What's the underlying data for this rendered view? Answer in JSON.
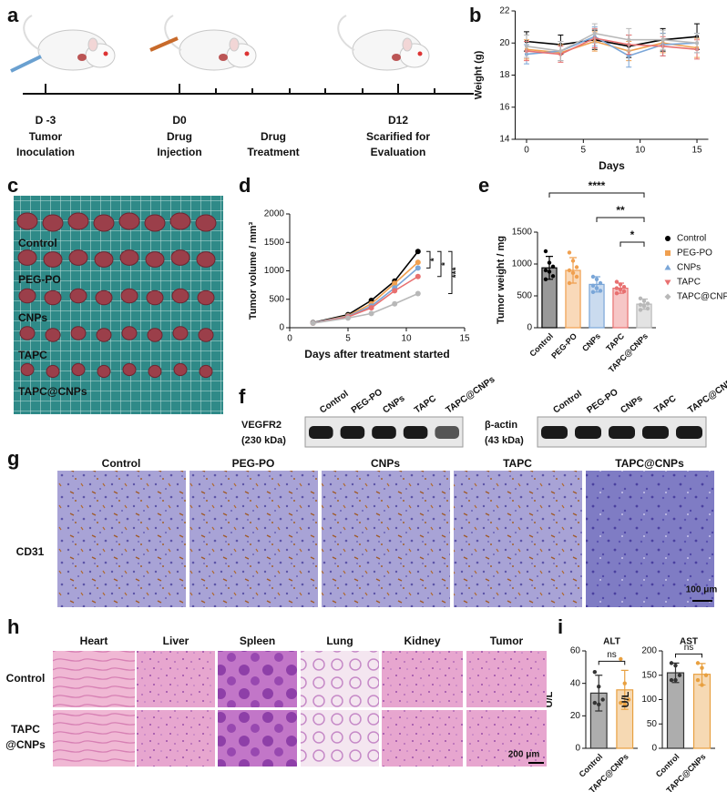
{
  "panel_labels": [
    "a",
    "b",
    "c",
    "d",
    "e",
    "f",
    "g",
    "h",
    "i"
  ],
  "timeline": {
    "days": [
      "D -3",
      "D0",
      "D12"
    ],
    "labels": [
      [
        "Tumor",
        "Inoculation"
      ],
      [
        "Drug",
        "Injection"
      ],
      [
        "Drug",
        "Treatment"
      ],
      [
        "Scarified for",
        "Evaluation"
      ]
    ]
  },
  "photo": {
    "rows": [
      "Control",
      "PEG-PO",
      "CNPs",
      "TAPC",
      "TAPC@CNPs"
    ]
  },
  "blot": {
    "lanes": [
      "Control",
      "PEG-PO",
      "CNPs",
      "TAPC",
      "TAPC@CNPs"
    ],
    "left": {
      "protein": "VEGFR2",
      "size": "(230 kDa)"
    },
    "right": {
      "protein": "β-actin",
      "size": "(43 kDa)"
    }
  },
  "cd31": {
    "columns": [
      "Control",
      "PEG-PO",
      "CNPs",
      "TAPC",
      "TAPC@CNPs"
    ],
    "row": "CD31",
    "scale": "100 μm"
  },
  "he": {
    "columns": [
      "Heart",
      "Liver",
      "Spleen",
      "Lung",
      "Kidney",
      "Tumor"
    ],
    "rows": [
      [
        "Control"
      ],
      [
        "TAPC",
        "@CNPs"
      ]
    ],
    "scale": "200 μm"
  },
  "chart_data": [
    {
      "type": "line",
      "x_label": "Days",
      "y_label": "Weight (g)",
      "x": [
        0,
        3,
        6,
        9,
        12,
        15
      ],
      "xlim": [
        -1,
        16
      ],
      "xticks": [
        0,
        5,
        10,
        15
      ],
      "ylim": [
        14,
        22
      ],
      "yticks": [
        14,
        16,
        18,
        20,
        22
      ],
      "series": [
        {
          "name": "Control",
          "color": "#000000",
          "values": [
            20.1,
            19.9,
            20.2,
            19.8,
            20.2,
            20.4
          ],
          "errors": [
            0.6,
            0.6,
            0.6,
            0.7,
            0.7,
            0.8
          ]
        },
        {
          "name": "PEG-PO",
          "color": "#f0a050",
          "values": [
            19.6,
            19.4,
            20.1,
            19.5,
            20.0,
            19.7
          ],
          "errors": [
            0.6,
            0.5,
            0.6,
            0.6,
            0.6,
            0.6
          ]
        },
        {
          "name": "CNPs",
          "color": "#7aa6d8",
          "values": [
            19.3,
            19.5,
            20.4,
            19.2,
            19.9,
            20.0
          ],
          "errors": [
            0.6,
            0.6,
            0.6,
            0.7,
            0.7,
            0.6
          ]
        },
        {
          "name": "TAPC",
          "color": "#e87070",
          "values": [
            19.5,
            19.3,
            20.3,
            19.9,
            19.8,
            19.6
          ],
          "errors": [
            0.6,
            0.5,
            0.6,
            0.6,
            0.6,
            0.6
          ]
        },
        {
          "name": "TAPC@CNPs",
          "color": "#b8b8b8",
          "values": [
            19.8,
            19.5,
            20.6,
            20.2,
            20.2,
            20.0
          ],
          "errors": [
            0.7,
            0.6,
            0.6,
            0.7,
            0.6,
            0.6
          ]
        }
      ]
    },
    {
      "type": "line",
      "x_label": "Days after treatment started",
      "y_label": "Tumor volume / mm³",
      "x": [
        2,
        5,
        7,
        9,
        11
      ],
      "xlim": [
        0,
        15
      ],
      "xticks": [
        0,
        5,
        10,
        15
      ],
      "ylim": [
        0,
        2000
      ],
      "yticks": [
        0,
        500,
        1000,
        1500,
        2000
      ],
      "significance": [
        "*",
        "*",
        "***"
      ],
      "series": [
        {
          "name": "Control",
          "color": "#000000",
          "values": [
            90,
            230,
            480,
            820,
            1340
          ]
        },
        {
          "name": "PEG-PO",
          "color": "#f0a050",
          "values": [
            85,
            210,
            420,
            780,
            1150
          ]
        },
        {
          "name": "CNPs",
          "color": "#7aa6d8",
          "values": [
            85,
            200,
            380,
            700,
            1050
          ]
        },
        {
          "name": "TAPC",
          "color": "#e87070",
          "values": [
            80,
            190,
            350,
            650,
            900
          ]
        },
        {
          "name": "TAPC@CNPs",
          "color": "#b8b8b8",
          "values": [
            80,
            170,
            250,
            420,
            600
          ]
        }
      ]
    },
    {
      "type": "bar",
      "y_label": "Tumor weight / mg",
      "categories": [
        "Control",
        "PEG-PO",
        "CNPs",
        "TAPC",
        "TAPC@CNPs"
      ],
      "colors": [
        "#000000",
        "#f0a050",
        "#7aa6d8",
        "#e87070",
        "#b8b8b8"
      ],
      "values": [
        940,
        900,
        680,
        620,
        370
      ],
      "errors": [
        180,
        200,
        120,
        80,
        80
      ],
      "points": [
        [
          1200,
          1020,
          960,
          900,
          880,
          810,
          760
        ],
        [
          1180,
          1050,
          950,
          900,
          860,
          800,
          700
        ],
        [
          800,
          760,
          700,
          660,
          620,
          580,
          560
        ],
        [
          720,
          680,
          640,
          620,
          600,
          570,
          540
        ],
        [
          460,
          420,
          380,
          360,
          340,
          300,
          280
        ]
      ],
      "ylim": [
        0,
        1500
      ],
      "yticks": [
        0,
        500,
        1000,
        1500
      ],
      "significance": [
        "****",
        "**",
        "*"
      ],
      "legend": "right"
    },
    {
      "type": "bar",
      "title": "ALT",
      "y_label": "U/L",
      "categories": [
        "Control",
        "TAPC@CNPs"
      ],
      "colors": [
        "#333333",
        "#e8a040"
      ],
      "values": [
        34,
        36
      ],
      "errors": [
        11,
        12
      ],
      "points": [
        [
          47,
          38,
          30,
          28,
          27
        ],
        [
          55,
          40,
          30,
          28,
          27
        ]
      ],
      "ylim": [
        0,
        60
      ],
      "yticks": [
        0,
        20,
        40,
        60
      ],
      "significance": [
        "ns"
      ]
    },
    {
      "type": "bar",
      "title": "AST",
      "y_label": "U/L",
      "categories": [
        "Control",
        "TAPC@CNPs"
      ],
      "colors": [
        "#333333",
        "#e8a040"
      ],
      "values": [
        155,
        152
      ],
      "errors": [
        20,
        22
      ],
      "points": [
        [
          175,
          170,
          150,
          140,
          140
        ],
        [
          175,
          165,
          150,
          140,
          130
        ]
      ],
      "ylim": [
        0,
        200
      ],
      "yticks": [
        0,
        50,
        100,
        150,
        200
      ],
      "significance": [
        "ns"
      ]
    }
  ]
}
